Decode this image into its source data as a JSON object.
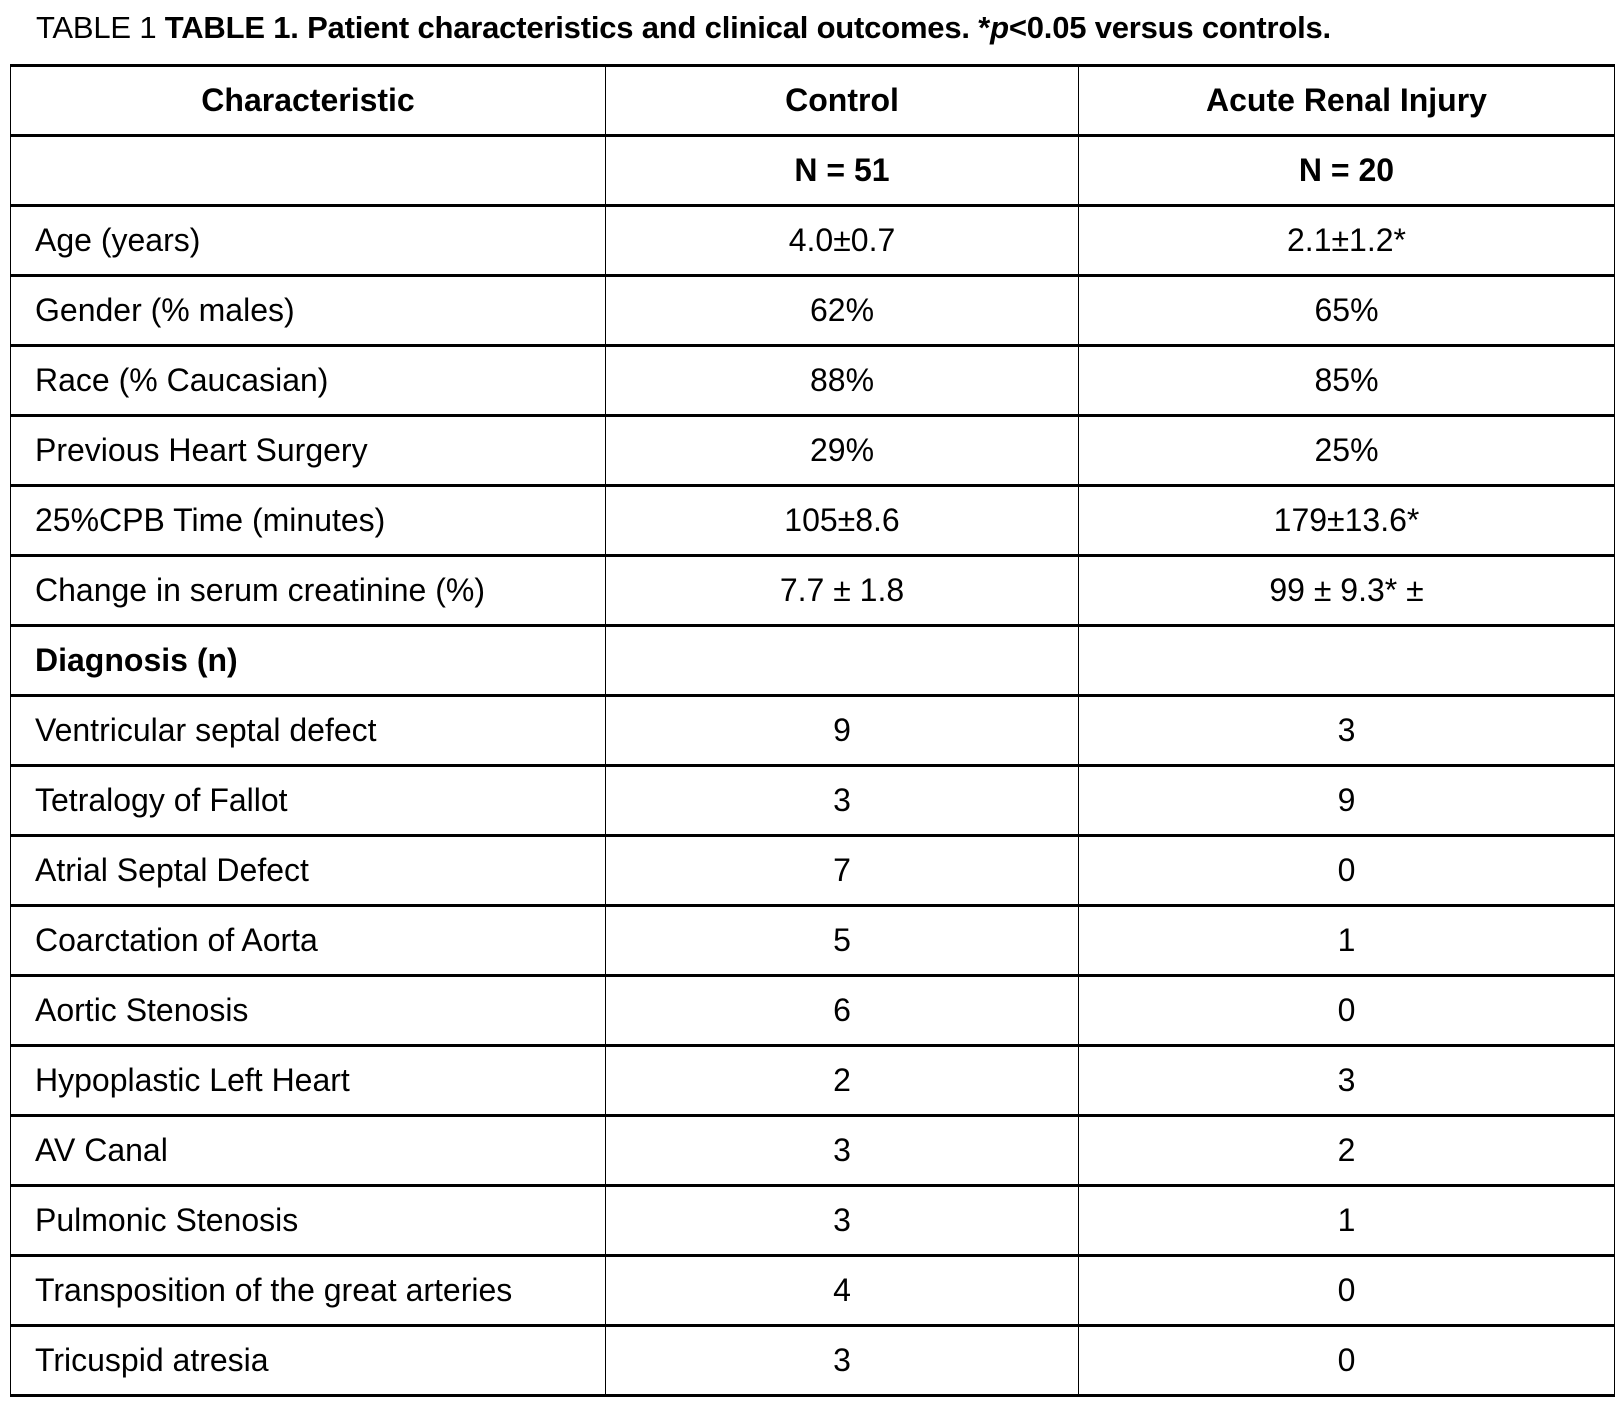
{
  "title": {
    "prefix": "TABLE 1 ",
    "bold_lead": "TABLE 1. Patient characteristics and clinical outcomes. *",
    "italic_p": "p",
    "bold_tail": "<0.05 versus controls."
  },
  "table": {
    "headers": [
      "Characteristic",
      "Control",
      "Acute Renal Injury"
    ],
    "n_row": [
      "",
      "N = 51",
      "N = 20"
    ],
    "rows": [
      [
        "Age (years)",
        "4.0±0.7",
        "2.1±1.2*"
      ],
      [
        "Gender (% males)",
        "62%",
        "65%"
      ],
      [
        "Race (% Caucasian)",
        "88%",
        "85%"
      ],
      [
        "Previous Heart Surgery",
        "29%",
        "25%"
      ],
      [
        "25%CPB Time (minutes)",
        "105±8.6",
        "179±13.6*"
      ],
      [
        "Change in serum creatinine (%)",
        "7.7 ± 1.8",
        "99 ± 9.3* ±"
      ],
      [
        "Diagnosis (n)",
        "",
        ""
      ],
      [
        "Ventricular septal defect",
        "9",
        "3"
      ],
      [
        "Tetralogy of Fallot",
        "3",
        "9"
      ],
      [
        "Atrial Septal Defect",
        "7",
        "0"
      ],
      [
        "Coarctation of Aorta",
        "5",
        "1"
      ],
      [
        "Aortic Stenosis",
        "6",
        "0"
      ],
      [
        "Hypoplastic Left Heart",
        "2",
        "3"
      ],
      [
        "AV Canal",
        "3",
        "2"
      ],
      [
        "Pulmonic Stenosis",
        "3",
        "1"
      ],
      [
        "Transposition of the great arteries",
        "4",
        "0"
      ],
      [
        "Tricuspid atresia",
        "3",
        "0"
      ]
    ]
  }
}
